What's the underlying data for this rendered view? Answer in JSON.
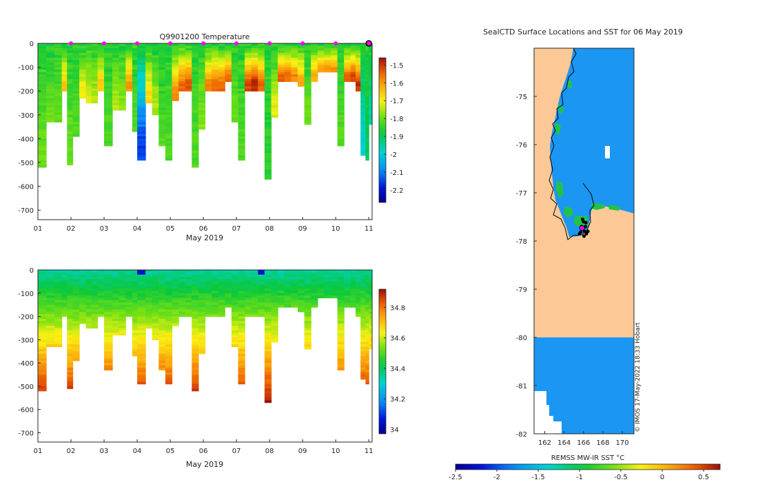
{
  "colors": {
    "land": "#fcc996",
    "background": "#ffffff",
    "ocean_cold": "#1b96f3",
    "marker_profile": "#ff00ff",
    "marker_seal": "#000000"
  },
  "chart_data": [
    {
      "id": "temperature",
      "type": "heatmap",
      "title": "Q9901200  Temperature",
      "xlabel": "May 2019",
      "ylabel": "",
      "xlim": [
        1,
        11.1
      ],
      "ylim": [
        -740,
        0
      ],
      "x_ticks": [
        "01",
        "02",
        "03",
        "04",
        "05",
        "06",
        "07",
        "08",
        "09",
        "10",
        "11"
      ],
      "y_ticks": [
        "0",
        "-100",
        "-200",
        "-300",
        "-400",
        "-500",
        "-600",
        "-700"
      ],
      "y_tick_values": [
        0,
        -100,
        -200,
        -300,
        -400,
        -500,
        -600,
        -700
      ],
      "profile_markers_day": [
        2,
        3,
        4,
        5,
        6,
        7,
        8,
        9,
        10,
        11
      ],
      "colorbar": {
        "range": [
          -2.27,
          -1.46
        ],
        "ticks": [
          "-1.5",
          "-1.6",
          "-1.7",
          "-1.8",
          "-1.9",
          "-2",
          "-2.1",
          "-2.2"
        ],
        "tick_values": [
          -1.5,
          -1.6,
          -1.7,
          -1.8,
          -1.9,
          -2.0,
          -2.1,
          -2.2
        ]
      },
      "profile_start_days": [
        1.0,
        1.25,
        1.5,
        1.72,
        1.88,
        2.05,
        2.25,
        2.45,
        2.62,
        2.8,
        3.0,
        3.25,
        3.45,
        3.65,
        3.85,
        4.0,
        4.25,
        4.45,
        4.65,
        4.85,
        5.05,
        5.25,
        5.45,
        5.65,
        5.85,
        6.05,
        6.25,
        6.45,
        6.65,
        6.85,
        7.05,
        7.25,
        7.45,
        7.65,
        7.85,
        8.05,
        8.25,
        8.45,
        8.65,
        8.85,
        9.05,
        9.25,
        9.45,
        9.65,
        9.85,
        10.05,
        10.25,
        10.45,
        10.6,
        10.75,
        10.9,
        11.0
      ],
      "profile_max_depths": [
        520,
        330,
        330,
        200,
        505,
        390,
        230,
        250,
        250,
        200,
        430,
        280,
        280,
        200,
        370,
        490,
        250,
        300,
        430,
        490,
        240,
        200,
        200,
        520,
        360,
        200,
        200,
        200,
        160,
        330,
        490,
        200,
        200,
        200,
        570,
        310,
        160,
        160,
        160,
        180,
        340,
        160,
        120,
        120,
        120,
        430,
        160,
        160,
        200,
        470,
        490,
        340
      ],
      "profile_bottom_values": [
        -1.8,
        -1.8,
        -1.8,
        -1.65,
        -1.8,
        -1.82,
        -1.7,
        -1.72,
        -1.75,
        -1.65,
        -1.82,
        -1.75,
        -1.78,
        -1.6,
        -1.82,
        -2.15,
        -1.68,
        -1.75,
        -1.82,
        -1.82,
        -1.58,
        -1.55,
        -1.52,
        -1.82,
        -1.78,
        -1.58,
        -1.55,
        -1.55,
        -1.55,
        -1.8,
        -1.82,
        -1.52,
        -1.48,
        -1.55,
        -1.85,
        -1.72,
        -1.55,
        -1.55,
        -1.58,
        -1.62,
        -1.8,
        -1.62,
        -1.6,
        -1.6,
        -1.6,
        -1.82,
        -1.55,
        -1.52,
        -1.5,
        -1.98,
        -1.9,
        -1.95
      ]
    },
    {
      "id": "salinity",
      "type": "heatmap",
      "title": "",
      "xlabel": "May 2019",
      "ylabel": "",
      "xlim": [
        1,
        11.1
      ],
      "ylim": [
        -740,
        0
      ],
      "x_ticks": [
        "01",
        "02",
        "03",
        "04",
        "05",
        "06",
        "07",
        "08",
        "09",
        "10",
        "11"
      ],
      "y_ticks": [
        "0",
        "-100",
        "-200",
        "-300",
        "-400",
        "-500",
        "-600",
        "-700"
      ],
      "y_tick_values": [
        0,
        -100,
        -200,
        -300,
        -400,
        -500,
        -600,
        -700
      ],
      "colorbar": {
        "range": [
          33.97,
          34.92
        ],
        "ticks": [
          "34.8",
          "34.6",
          "34.4",
          "34.2",
          "34"
        ],
        "tick_values": [
          34.8,
          34.6,
          34.4,
          34.2,
          34.0
        ]
      },
      "surface_value": 34.35,
      "surface_fresh_anomalies_day": [
        4.0,
        7.65
      ],
      "salinity_gradient_per_100m": 0.1
    },
    {
      "id": "map",
      "type": "heatmap",
      "title": "SealCTD Surface Locations and SST for 06 May 2019",
      "xlabel": "REMSS MW-IR SST °C",
      "xlim": [
        160.9,
        171.2
      ],
      "ylim": [
        -82,
        -74
      ],
      "x_ticks": [
        "162",
        "164",
        "166",
        "168",
        "170"
      ],
      "x_tick_values": [
        162,
        164,
        166,
        168,
        170
      ],
      "y_ticks": [
        "-75",
        "-76",
        "-77",
        "-78",
        "-79",
        "-80",
        "-81",
        "-82"
      ],
      "y_tick_values": [
        -75,
        -76,
        -77,
        -78,
        -79,
        -80,
        -81,
        -82
      ],
      "colorbar": {
        "range": [
          -2.5,
          0.7
        ],
        "ticks": [
          "-2.5",
          "-2",
          "-1.5",
          "-1",
          "-0.5",
          "0",
          "0.5"
        ],
        "tick_values": [
          -2.5,
          -2.0,
          -1.5,
          -1.0,
          -0.5,
          0.0,
          0.5
        ]
      },
      "sea_surface_temperature": -1.5,
      "seal_locations": [
        {
          "lon": 165.9,
          "lat": -77.55
        },
        {
          "lon": 166.0,
          "lat": -77.6
        },
        {
          "lon": 165.8,
          "lat": -77.7
        },
        {
          "lon": 166.2,
          "lat": -77.7
        },
        {
          "lon": 166.1,
          "lat": -77.8
        },
        {
          "lon": 165.7,
          "lat": -77.82
        },
        {
          "lon": 166.3,
          "lat": -77.85
        },
        {
          "lon": 165.95,
          "lat": -77.75
        },
        {
          "lon": 166.45,
          "lat": -77.8
        },
        {
          "lon": 165.6,
          "lat": -77.85
        },
        {
          "lon": 166.05,
          "lat": -77.9
        },
        {
          "lon": 166.25,
          "lat": -77.62
        }
      ],
      "highlighted_location": {
        "lon": 165.85,
        "lat": -77.73
      },
      "credit": "© IMOS 17-May-2022 18:33 Hobart"
    }
  ]
}
